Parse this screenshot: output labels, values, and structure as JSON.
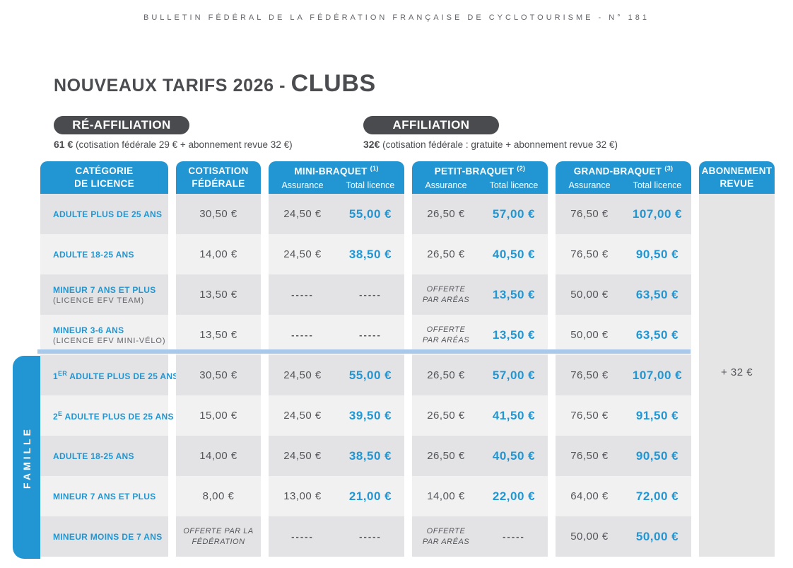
{
  "page": {
    "bulletin_header": "BULLETIN FÉDÉRAL DE LA FÉDÉRATION FRANÇAISE DE CYCLOTOURISME - N° 181",
    "title_prefix": "NOUVEAUX TARIFS 2026 - ",
    "title_emphasis": "CLUBS"
  },
  "affiliation": {
    "reaffiliation_badge": "RÉ-AFFILIATION",
    "reaffiliation_price": "61 €",
    "reaffiliation_detail": " (cotisation fédérale 29 € + abonnement revue 32 €)",
    "affiliation_badge": "AFFILIATION",
    "affiliation_price": "32€",
    "affiliation_detail": " (cotisation fédérale : gratuite + abonnement revue 32 €)"
  },
  "table": {
    "columns": {
      "category": "CATÉGORIE\nDE LICENCE",
      "cotisation": "COTISATION\nFÉDÉRALE",
      "mini": "MINI-BRAQUET ^{(1)}",
      "petit": "PETIT-BRAQUET ^{(2)}",
      "grand": "GRAND-BRAQUET ^{(3)}",
      "abonnement": "ABONNEMENT\nREVUE",
      "sub_assurance": "Assurance",
      "sub_total": "Total licence"
    },
    "family_label": "FAMILLE",
    "abonnement_value": "+ 32 €",
    "rows": [
      {
        "category": "ADULTE PLUS DE 25 ANS",
        "cotisation": "30,50 €",
        "mini": [
          "24,50 €",
          "55,00 €"
        ],
        "petit": [
          "26,50 €",
          "57,00 €"
        ],
        "grand": [
          "76,50 €",
          "107,00 €"
        ]
      },
      {
        "category": "ADULTE 18-25 ANS",
        "cotisation": "14,00 €",
        "mini": [
          "24,50 €",
          "38,50 €"
        ],
        "petit": [
          "26,50 €",
          "40,50 €"
        ],
        "grand": [
          "76,50 €",
          "90,50 €"
        ]
      },
      {
        "category": "MINEUR 7 ANS ET PLUS",
        "category_sub": "(LICENCE EFV TEAM)",
        "cotisation": "13,50 €",
        "mini": [
          "-----",
          "-----"
        ],
        "petit": [
          "OFFERTE\nPAR ARÉAS",
          "13,50 €"
        ],
        "grand": [
          "50,00 €",
          "63,50 €"
        ]
      },
      {
        "category": "MINEUR 3-6 ANS",
        "category_sub": "(LICENCE EFV MINI-VÉLO)",
        "cotisation": "13,50 €",
        "mini": [
          "-----",
          "-----"
        ],
        "petit": [
          "OFFERTE\nPAR ARÉAS",
          "13,50 €"
        ],
        "grand": [
          "50,00 €",
          "63,50 €"
        ]
      },
      {
        "category": "1^{ER} ADULTE PLUS DE 25 ANS",
        "family": true,
        "cotisation": "30,50 €",
        "mini": [
          "24,50 €",
          "55,00 €"
        ],
        "petit": [
          "26,50 €",
          "57,00 €"
        ],
        "grand": [
          "76,50 €",
          "107,00 €"
        ]
      },
      {
        "category": "2^{E} ADULTE PLUS DE 25 ANS",
        "family": true,
        "cotisation": "15,00 €",
        "mini": [
          "24,50 €",
          "39,50 €"
        ],
        "petit": [
          "26,50 €",
          "41,50 €"
        ],
        "grand": [
          "76,50 €",
          "91,50 €"
        ]
      },
      {
        "category": "ADULTE 18-25 ANS",
        "family": true,
        "cotisation": "14,00 €",
        "mini": [
          "24,50 €",
          "38,50 €"
        ],
        "petit": [
          "26,50 €",
          "40,50 €"
        ],
        "grand": [
          "76,50 €",
          "90,50 €"
        ]
      },
      {
        "category": "MINEUR 7 ANS ET PLUS",
        "family": true,
        "cotisation": "8,00 €",
        "mini": [
          "13,00 €",
          "21,00 €"
        ],
        "petit": [
          "14,00 €",
          "22,00 €"
        ],
        "grand": [
          "64,00 €",
          "72,00 €"
        ]
      },
      {
        "category": "MINEUR MOINS DE 7 ANS",
        "family": true,
        "cotisation": "OFFERTE PAR LA\nFÉDÉRATION",
        "mini": [
          "-----",
          "-----"
        ],
        "petit": [
          "OFFERTE\nPAR ARÉAS",
          "-----"
        ],
        "grand": [
          "50,00 €",
          "50,00 €"
        ]
      }
    ]
  },
  "colors": {
    "accent_blue": "#2196d3",
    "separator_blue": "#a9c9ea",
    "row_dark": "#e3e3e5",
    "row_light": "#f1f1f2",
    "abonnement_gray": "#e5e5e6",
    "badge_dark": "#4a4b4e",
    "text_dark": "#55565a"
  }
}
